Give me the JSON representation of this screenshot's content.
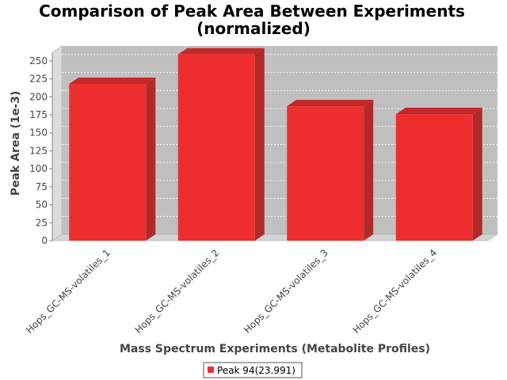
{
  "chart_data": {
    "type": "bar",
    "title_line1": "Comparison of Peak Area Between Experiments",
    "title_line2": "(normalized)",
    "xlabel": "Mass Spectrum Experiments (Metabolite Profiles)",
    "ylabel": "Peak Area (1e-3)",
    "categories": [
      "Hops_GC-MS-volatiles_1",
      "Hops_GC-MS-volatiles_2",
      "Hops_GC-MS-volatiles_3",
      "Hops_GC-MS-volatiles_4"
    ],
    "series": [
      {
        "name": "Peak 94(23.991)",
        "values": [
          218,
          259,
          187,
          176
        ]
      }
    ],
    "ylim": [
      0,
      262
    ],
    "yticks": [
      "0",
      "25",
      "50",
      "75",
      "100",
      "125",
      "150",
      "175",
      "200",
      "225",
      "250"
    ],
    "grid": true,
    "legend_position": "bottom-center",
    "colors": {
      "bar_front": "#EE2E2E",
      "bar_top": "#C42828",
      "bar_side": "#B02A2A",
      "plot_back": "#C0C0C0",
      "plot_wall": "#DCDCDC",
      "plot_floor": "#D4D4D4",
      "gridline": "#FFFFFF",
      "axis_text": "#444444"
    }
  }
}
